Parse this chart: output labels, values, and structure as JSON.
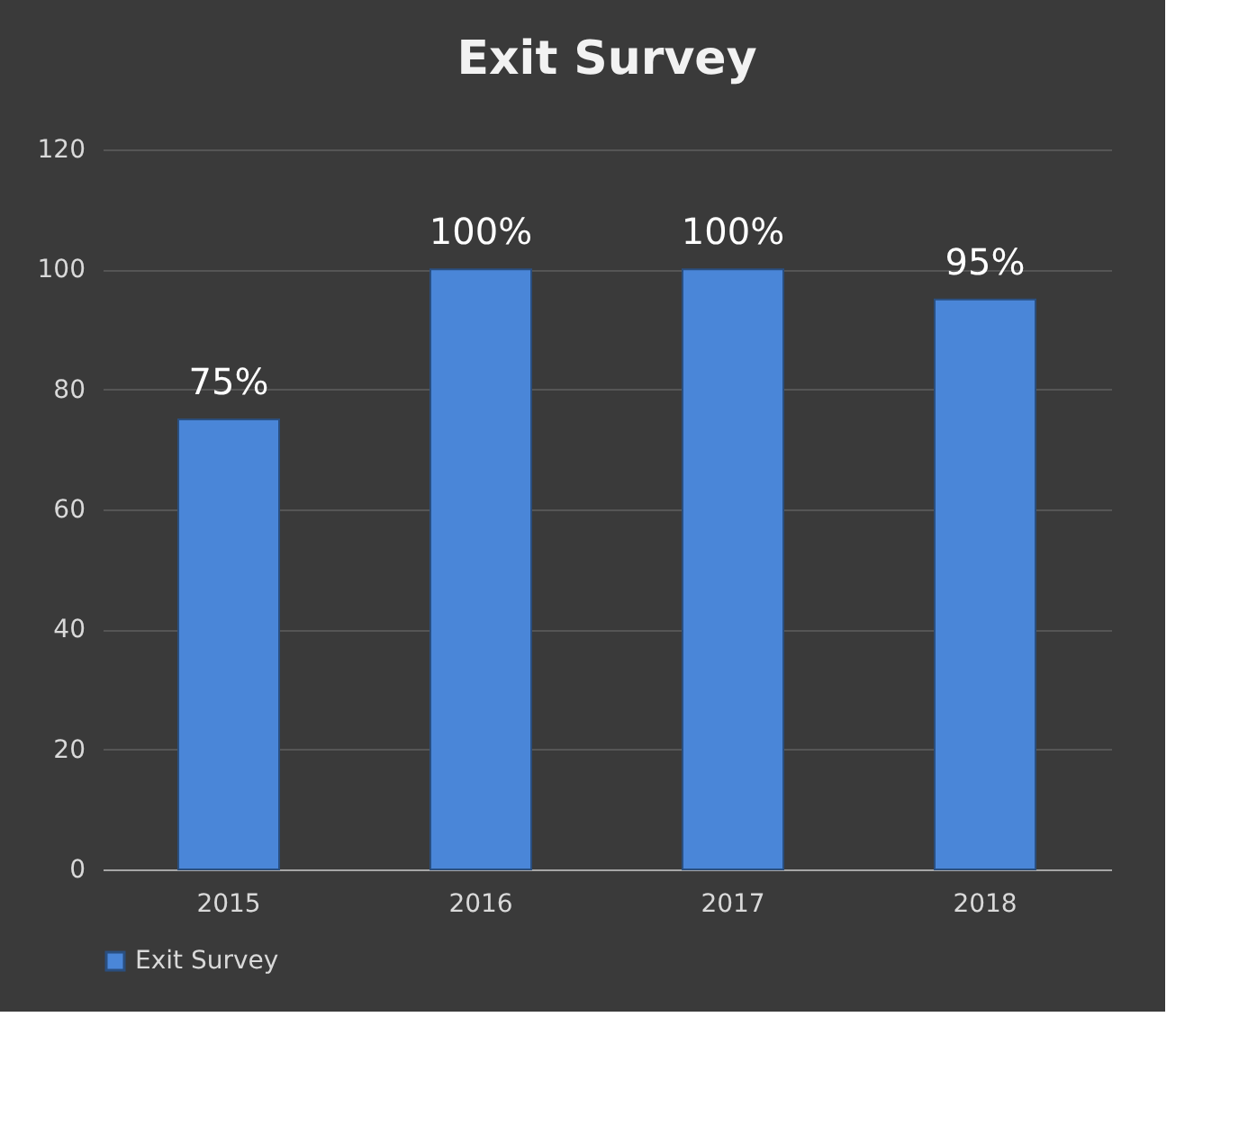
{
  "chart_data": {
    "type": "bar",
    "title": "Exit Survey",
    "categories": [
      "2015",
      "2016",
      "2017",
      "2018"
    ],
    "series": [
      {
        "name": "Exit Survey",
        "color": "#4a86d8",
        "values": [
          75,
          100,
          100,
          95
        ]
      }
    ],
    "value_labels": [
      "75%",
      "100%",
      "100%",
      "95%"
    ],
    "ylim": [
      0,
      120
    ],
    "yticks": [
      0,
      20,
      40,
      60,
      80,
      100,
      120
    ],
    "grid": "y",
    "legend": "bottom"
  }
}
